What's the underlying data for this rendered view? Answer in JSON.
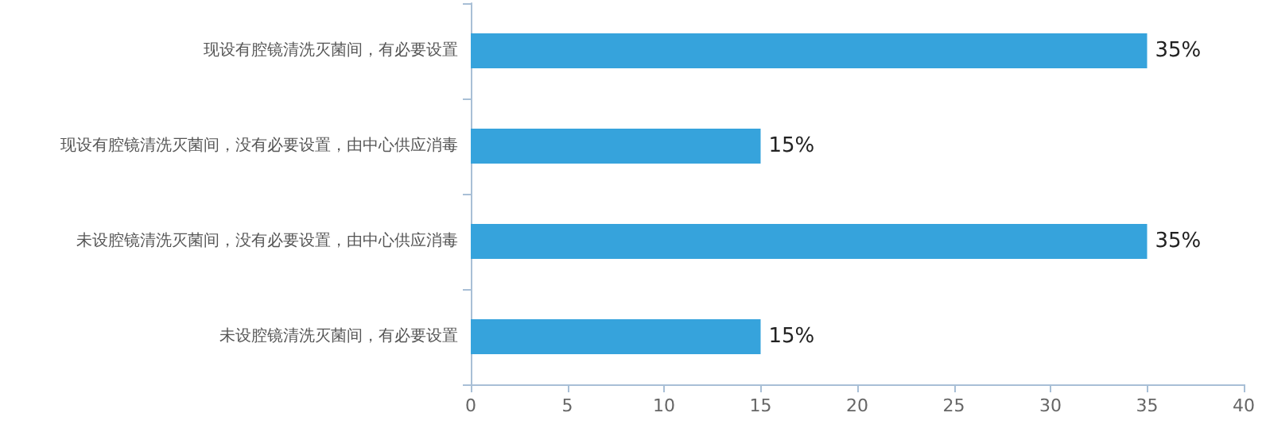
{
  "chart_data": {
    "type": "bar",
    "orientation": "horizontal",
    "categories": [
      "现设有腔镜清洗灭菌间，有必要设置",
      "现设有腔镜清洗灭菌间，没有必要设置，由中心供应消毒",
      "未设腔镜清洗灭菌间，没有必要设置，由中心供应消毒",
      "未设腔镜清洗灭菌间，有必要设置"
    ],
    "values": [
      35,
      15,
      35,
      15
    ],
    "value_labels": [
      "35%",
      "15%",
      "35%",
      "15%"
    ],
    "color": "#36a3dc",
    "xlim": [
      0,
      40
    ],
    "xticks": [
      0,
      5,
      10,
      15,
      20,
      25,
      30,
      35,
      40
    ],
    "grid": false
  }
}
